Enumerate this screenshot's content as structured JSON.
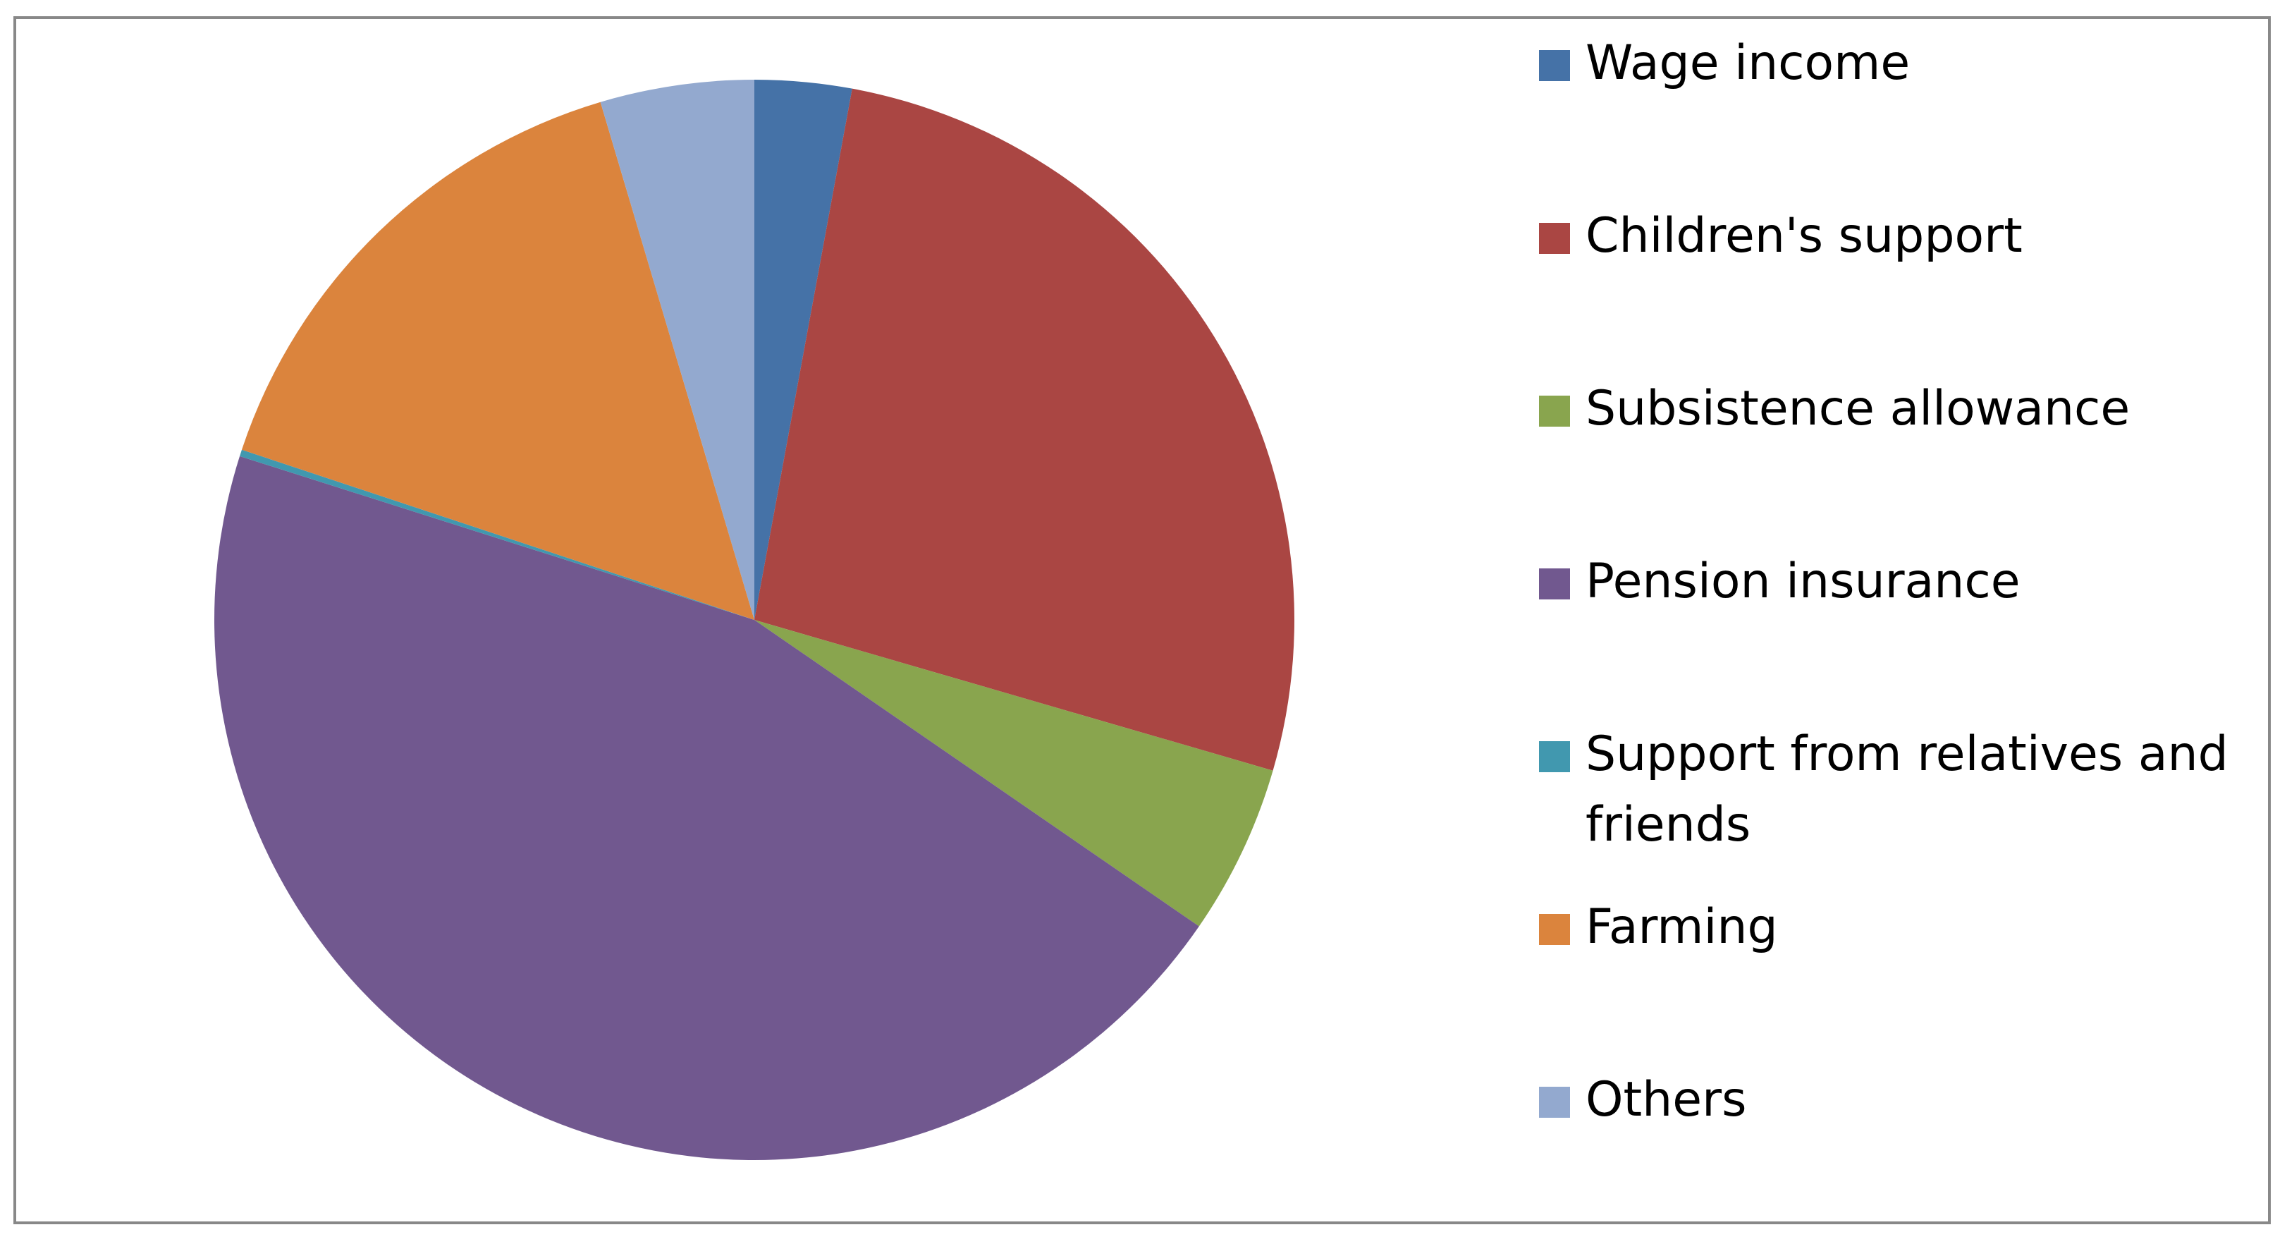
{
  "chart_data": {
    "type": "pie",
    "categories": [
      "Wage income",
      "Children's support",
      "Subsistence allowance",
      "Pension insurance",
      "Support from relatives and friends",
      "Farming",
      "Others"
    ],
    "values": [
      2.9,
      26.6,
      5.1,
      45.3,
      0.2,
      15.3,
      4.6
    ],
    "colors": [
      "#4572a7",
      "#aa4643",
      "#89a54e",
      "#71588f",
      "#4198af",
      "#db843d",
      "#93a9cf"
    ],
    "legend": "right"
  }
}
